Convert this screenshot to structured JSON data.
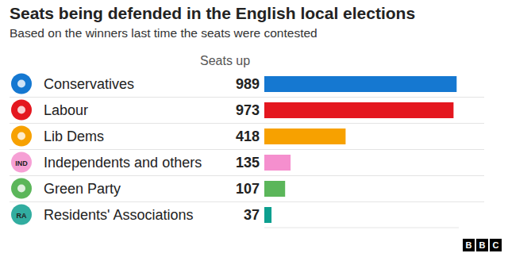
{
  "chart_data": {
    "type": "bar",
    "orientation": "horizontal",
    "title": "Seats being defended in the English local elections",
    "subtitle": "Based on the winners last time the seats were contested",
    "value_header": "Seats up",
    "categories": [
      "Conservatives",
      "Labour",
      "Lib Dems",
      "Independents and others",
      "Green Party",
      "Residents' Associations"
    ],
    "values": [
      989,
      973,
      418,
      135,
      107,
      37
    ],
    "colors": [
      "#1578d1",
      "#e4171f",
      "#f7a100",
      "#f58fce",
      "#5bb65a",
      "#0d9f8f"
    ],
    "icon_texts": {
      "Independents and others": "IND",
      "Residents' Associations": "RA"
    },
    "xlim": [
      0,
      1000
    ],
    "xticks": [],
    "tick_labels": "y",
    "data_labels": true,
    "grid": false,
    "logo": "BBC"
  }
}
